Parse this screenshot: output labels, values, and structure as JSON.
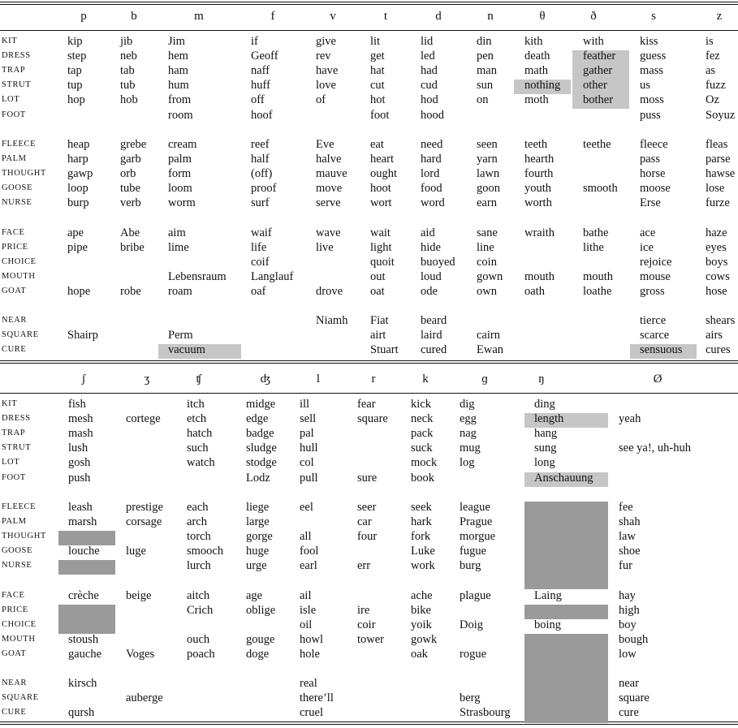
{
  "top": {
    "headers": [
      "p",
      "b",
      "m",
      "f",
      "v",
      "t",
      "d",
      "n",
      "θ",
      "ð",
      "s",
      "z"
    ],
    "rows": [
      {
        "label": "KIT",
        "cells": [
          "kip",
          "jib",
          "Jim",
          "if",
          "give",
          "lit",
          "lid",
          "din",
          "kith",
          "with",
          "kiss",
          "is"
        ]
      },
      {
        "label": "DRESS",
        "cells": [
          "step",
          "neb",
          "hem",
          "Geoff",
          "rev",
          "get",
          "led",
          "pen",
          "death",
          "feather",
          "guess",
          "fez"
        ]
      },
      {
        "label": "TRAP",
        "cells": [
          "tap",
          "tab",
          "ham",
          "naff",
          "have",
          "hat",
          "had",
          "man",
          "math",
          "gather",
          "mass",
          "as"
        ]
      },
      {
        "label": "STRUT",
        "cells": [
          "tup",
          "tub",
          "hum",
          "huff",
          "love",
          "cut",
          "cud",
          "sun",
          "nothing",
          "other",
          "us",
          "fuzz"
        ]
      },
      {
        "label": "LOT",
        "cells": [
          "hop",
          "hob",
          "from",
          "off",
          "of",
          "hot",
          "hod",
          "on",
          "moth",
          "bother",
          "moss",
          "Oz"
        ]
      },
      {
        "label": "FOOT",
        "cells": [
          "",
          "",
          "room",
          "hoof",
          "",
          "foot",
          "hood",
          "",
          "",
          "",
          "puss",
          "Soyuz"
        ]
      },
      {
        "label": "FLEECE",
        "cells": [
          "heap",
          "grebe",
          "cream",
          "reef",
          "Eve",
          "eat",
          "need",
          "seen",
          "teeth",
          "teethe",
          "fleece",
          "fleas"
        ]
      },
      {
        "label": "PALM",
        "cells": [
          "harp",
          "garb",
          "palm",
          "half",
          "halve",
          "heart",
          "hard",
          "yarn",
          "hearth",
          "",
          "pass",
          "parse"
        ]
      },
      {
        "label": "THOUGHT",
        "cells": [
          "gawp",
          "orb",
          "form",
          "(off)",
          "mauve",
          "ought",
          "lord",
          "lawn",
          "fourth",
          "",
          "horse",
          "hawse"
        ]
      },
      {
        "label": "GOOSE",
        "cells": [
          "loop",
          "tube",
          "loom",
          "proof",
          "move",
          "hoot",
          "food",
          "goon",
          "youth",
          "smooth",
          "moose",
          "lose"
        ]
      },
      {
        "label": "NURSE",
        "cells": [
          "burp",
          "verb",
          "worm",
          "surf",
          "serve",
          "wort",
          "word",
          "earn",
          "worth",
          "",
          "Erse",
          "furze"
        ]
      },
      {
        "label": "FACE",
        "cells": [
          "ape",
          "Abe",
          "aim",
          "waif",
          "wave",
          "wait",
          "aid",
          "sane",
          "wraith",
          "bathe",
          "ace",
          "haze"
        ]
      },
      {
        "label": "PRICE",
        "cells": [
          "pipe",
          "bribe",
          "lime",
          "life",
          "live",
          "light",
          "hide",
          "line",
          "",
          "lithe",
          "ice",
          "eyes"
        ]
      },
      {
        "label": "CHOICE",
        "cells": [
          "",
          "",
          "",
          "coif",
          "",
          "quoit",
          "buoyed",
          "coin",
          "",
          "",
          "rejoice",
          "boys"
        ]
      },
      {
        "label": "MOUTH",
        "cells": [
          "",
          "",
          "Lebensraum",
          "Langlauf",
          "",
          "out",
          "loud",
          "gown",
          "mouth",
          "mouth",
          "mouse",
          "cows"
        ]
      },
      {
        "label": "GOAT",
        "cells": [
          "hope",
          "robe",
          "roam",
          "oaf",
          "drove",
          "oat",
          "ode",
          "own",
          "oath",
          "loathe",
          "gross",
          "hose"
        ]
      },
      {
        "label": "NEAR",
        "cells": [
          "",
          "",
          "",
          "",
          "Niamh",
          "Fiat",
          "beard",
          "",
          "",
          "",
          "tierce",
          "shears"
        ]
      },
      {
        "label": "SQUARE",
        "cells": [
          "Shairp",
          "",
          "Perm",
          "",
          "",
          "airt",
          "laird",
          "cairn",
          "",
          "",
          "scarce",
          "airs"
        ]
      },
      {
        "label": "CURE",
        "cells": [
          "",
          "",
          "vacuum",
          "",
          "",
          "Stuart",
          "cured",
          "Ewan",
          "",
          "",
          "sensuous",
          "cures"
        ]
      }
    ]
  },
  "bottom": {
    "headers": [
      "ʃ",
      "ʒ",
      "ʧ",
      "ʤ",
      "l",
      "r",
      "k",
      "ɡ",
      "ŋ",
      "Ø"
    ],
    "rows": [
      {
        "label": "KIT",
        "cells": [
          "fish",
          "",
          "itch",
          "midge",
          "ill",
          "fear",
          "kick",
          "dig",
          "ding",
          ""
        ]
      },
      {
        "label": "DRESS",
        "cells": [
          "mesh",
          "cortege",
          "etch",
          "edge",
          "sell",
          "square",
          "neck",
          "egg",
          "length",
          "yeah"
        ]
      },
      {
        "label": "TRAP",
        "cells": [
          "mash",
          "",
          "hatch",
          "badge",
          "pal",
          "",
          "pack",
          "nag",
          "hang",
          ""
        ]
      },
      {
        "label": "STRUT",
        "cells": [
          "lush",
          "",
          "such",
          "sludge",
          "hull",
          "",
          "suck",
          "mug",
          "sung",
          "see ya!, uh-huh"
        ]
      },
      {
        "label": "LOT",
        "cells": [
          "gosh",
          "",
          "watch",
          "stodge",
          "col",
          "",
          "mock",
          "log",
          "long",
          ""
        ]
      },
      {
        "label": "FOOT",
        "cells": [
          "push",
          "",
          "",
          "Lodz",
          "pull",
          "sure",
          "book",
          "",
          "Anschauung",
          ""
        ]
      },
      {
        "label": "FLEECE",
        "cells": [
          "leash",
          "prestige",
          "each",
          "liege",
          "eel",
          "seer",
          "seek",
          "league",
          "",
          "fee"
        ]
      },
      {
        "label": "PALM",
        "cells": [
          "marsh",
          "corsage",
          "arch",
          "large",
          "",
          "car",
          "hark",
          "Prague",
          "",
          "shah"
        ]
      },
      {
        "label": "THOUGHT",
        "cells": [
          "",
          "",
          "torch",
          "gorge",
          "all",
          "four",
          "fork",
          "morgue",
          "",
          "law"
        ]
      },
      {
        "label": "GOOSE",
        "cells": [
          "louche",
          "luge",
          "smooch",
          "huge",
          "fool",
          "",
          "Luke",
          "fugue",
          "",
          "shoe"
        ]
      },
      {
        "label": "NURSE",
        "cells": [
          "",
          "",
          "lurch",
          "urge",
          "earl",
          "err",
          "work",
          "burg",
          "",
          "fur"
        ]
      },
      {
        "label": "FACE",
        "cells": [
          "crèche",
          "beige",
          "aitch",
          "age",
          "ail",
          "",
          "ache",
          "plague",
          "Laing",
          "hay"
        ]
      },
      {
        "label": "PRICE",
        "cells": [
          "",
          "",
          "Crich",
          "oblige",
          "isle",
          "ire",
          "bike",
          "",
          "",
          "high"
        ]
      },
      {
        "label": "CHOICE",
        "cells": [
          "",
          "",
          "",
          "",
          "oil",
          "coir",
          "yoik",
          "Doig",
          "boing",
          "boy"
        ]
      },
      {
        "label": "MOUTH",
        "cells": [
          "stoush",
          "",
          "ouch",
          "gouge",
          "howl",
          "tower",
          "gowk",
          "",
          "",
          "bough"
        ]
      },
      {
        "label": "GOAT",
        "cells": [
          "gauche",
          "Voges",
          "poach",
          "doge",
          "hole",
          "",
          "oak",
          "rogue",
          "",
          "low"
        ]
      },
      {
        "label": "NEAR",
        "cells": [
          "kirsch",
          "",
          "",
          "",
          "real",
          "",
          "",
          "",
          "",
          "near"
        ]
      },
      {
        "label": "SQUARE",
        "cells": [
          "",
          "auberge",
          "",
          "",
          "there’ll",
          "",
          "",
          "berg",
          "",
          "square"
        ]
      },
      {
        "label": "CURE",
        "cells": [
          "qursh",
          "",
          "",
          "",
          "cruel",
          "",
          "",
          "Strasbourg",
          "",
          "cure"
        ]
      }
    ]
  }
}
